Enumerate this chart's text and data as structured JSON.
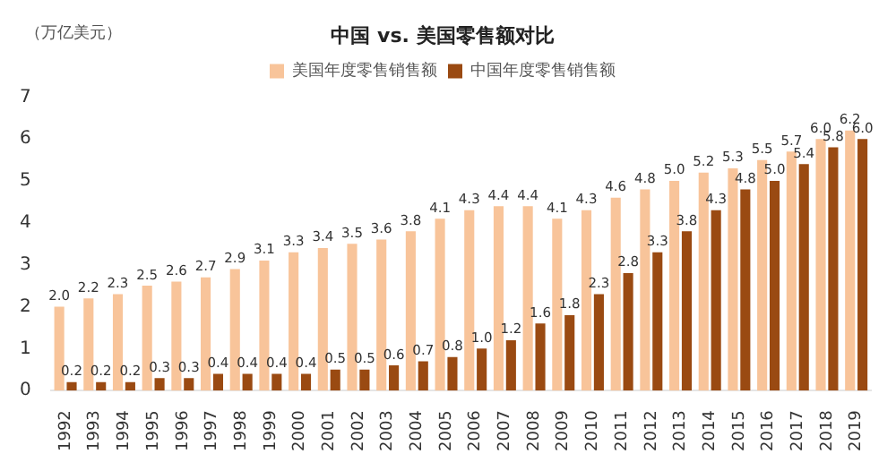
{
  "chart_data": {
    "type": "bar",
    "title": "中国 vs. 美国零售额对比",
    "ylabel": "（万亿美元）",
    "categories": [
      "1992",
      "1993",
      "1994",
      "1995",
      "1996",
      "1997",
      "1998",
      "1999",
      "2000",
      "2001",
      "2002",
      "2003",
      "2004",
      "2005",
      "2006",
      "2007",
      "2008",
      "2009",
      "2010",
      "2011",
      "2012",
      "2013",
      "2014",
      "2015",
      "2016",
      "2017",
      "2018",
      "2019"
    ],
    "series": [
      {
        "name": "美国年度零售销售额",
        "color": "#f8c49a",
        "values": [
          2.0,
          2.2,
          2.3,
          2.5,
          2.6,
          2.7,
          2.9,
          3.1,
          3.3,
          3.4,
          3.5,
          3.6,
          3.8,
          4.1,
          4.3,
          4.4,
          4.4,
          4.1,
          4.3,
          4.6,
          4.8,
          5.0,
          5.2,
          5.3,
          5.5,
          5.7,
          6.0,
          6.2
        ],
        "value_labels": [
          "2.0",
          "2.2",
          "2.3",
          "2.5",
          "2.6",
          "2.7",
          "2.9",
          "3.1",
          "3.3",
          "3.4",
          "3.5",
          "3.6",
          "3.8",
          "4.1",
          "4.3",
          "4.4",
          "4.4",
          "4.1",
          "4.3",
          "4.6",
          "4.8",
          "5.0",
          "5.2",
          "5.3",
          "5.5",
          "5.7",
          "6.0",
          "6.2"
        ]
      },
      {
        "name": "中国年度零售销售额",
        "color": "#9a4a12",
        "values": [
          0.2,
          0.2,
          0.2,
          0.3,
          0.3,
          0.4,
          0.4,
          0.4,
          0.4,
          0.5,
          0.5,
          0.6,
          0.7,
          0.8,
          1.0,
          1.2,
          1.6,
          1.8,
          2.3,
          2.8,
          3.3,
          3.8,
          4.3,
          4.8,
          5.0,
          5.4,
          5.8,
          6.0
        ],
        "value_labels": [
          "0.2",
          "0.2",
          "0.2",
          "0.3",
          "0.3",
          "0.4",
          "0.4",
          "0.4",
          "0.4",
          "0.5",
          "0.5",
          "0.6",
          "0.7",
          "0.8",
          "1.0",
          "1.2",
          "1.6",
          "1.8",
          "2.3",
          "2.8",
          "3.3",
          "3.8",
          "4.3",
          "4.8",
          "5.0",
          "5.4",
          "5.8",
          "6.0"
        ]
      }
    ],
    "ylim": [
      0,
      7
    ],
    "yticks": [
      0,
      1,
      2,
      3,
      4,
      5,
      6,
      7
    ],
    "grid": false,
    "legend": "top"
  }
}
